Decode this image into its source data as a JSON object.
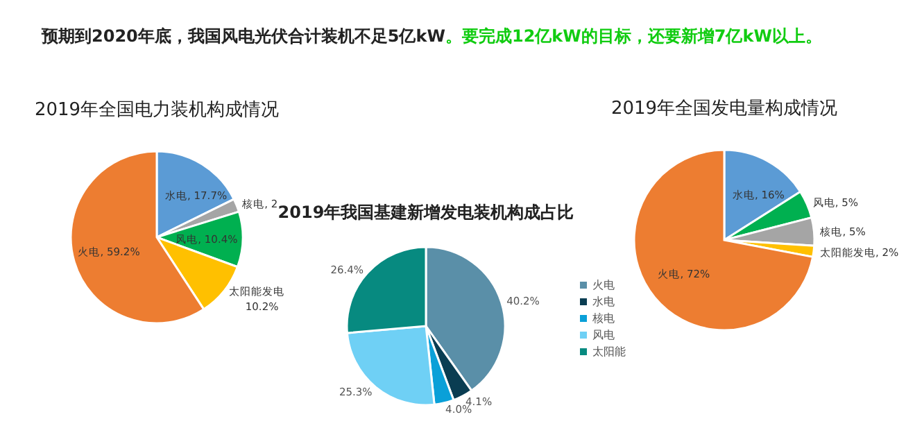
{
  "chart_data": [
    {
      "type": "other",
      "annotations": [
        "预期到2020年底，我国风电光伏合计装机不足5亿kW",
        "。要完成12亿kW的目标，还要新增7亿kW以上。"
      ]
    },
    {
      "type": "pie",
      "title": "2019年全国电力装机构成情况",
      "categories": [
        "水电",
        "核电",
        "风电",
        "太阳能发电",
        "火电"
      ],
      "values": [
        17.7,
        2.5,
        10.4,
        10.2,
        59.2
      ],
      "colors": [
        "#5b9bd5",
        "#a5a5a5",
        "#00b050",
        "#ffc000",
        "#ed7d31"
      ],
      "value_labels": [
        "17.7%",
        "2",
        "10.4%",
        "10.2%",
        "59.2%"
      ],
      "legend": false
    },
    {
      "type": "pie",
      "title": "2019年我国基建新增发电装机构成占比",
      "categories": [
        "火电",
        "水电",
        "核电",
        "风电",
        "太阳能"
      ],
      "values": [
        40.2,
        4.1,
        4.0,
        25.3,
        26.4
      ],
      "colors": [
        "#5a8fa8",
        "#0a3d52",
        "#0aa0d8",
        "#6fd0f5",
        "#078a80"
      ],
      "value_labels": [
        "40.2%",
        "4.1%",
        "4.0%",
        "25.3%",
        "26.4%"
      ],
      "legend": "right"
    },
    {
      "type": "pie",
      "title": "2019年全国发电量构成情况",
      "categories": [
        "水电",
        "风电",
        "核电",
        "太阳能发电",
        "火电"
      ],
      "values": [
        16,
        5,
        5,
        2,
        72
      ],
      "colors": [
        "#5b9bd5",
        "#00b050",
        "#a5a5a5",
        "#ffc000",
        "#ed7d31"
      ],
      "value_labels": [
        "16%",
        "5%",
        "5%",
        "2%",
        "72%"
      ],
      "legend": false
    }
  ]
}
